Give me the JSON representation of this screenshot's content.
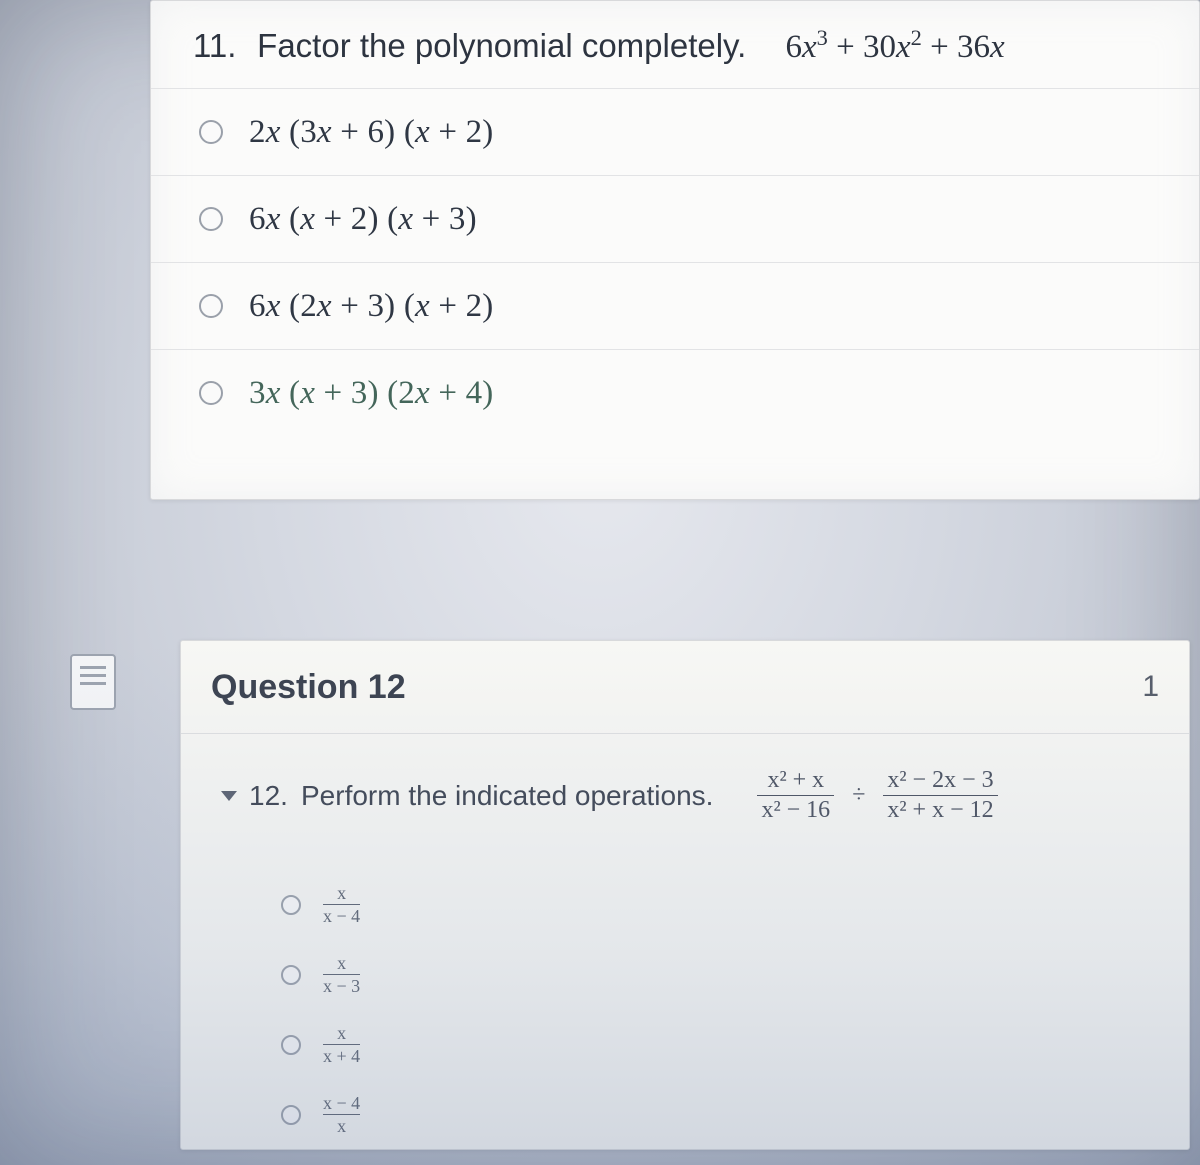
{
  "q11": {
    "number": "11.",
    "prompt": "Factor the polynomial completely.",
    "expression_html": "6<i>x</i><sup>3</sup> + 30<i>x</i><sup>2</sup> + 36<i>x</i>",
    "options": [
      "2<i>x</i> (3<i>x</i> + 6) (<i>x</i> + 2)",
      "6<i>x</i> (<i>x</i> + 2) (<i>x</i> + 3)",
      "6<i>x</i> (2<i>x</i> + 3) (<i>x</i> + 2)",
      "3<i>x</i> (<i>x</i> + 3) (2<i>x</i> + 4)"
    ],
    "option_colors": [
      "#2f3744",
      "#2f3744",
      "#2f3744",
      "#44665a"
    ]
  },
  "q12": {
    "title": "Question 12",
    "points": "1",
    "number": "12.",
    "prompt": "Perform the indicated operations.",
    "frac1_top": "x² + x",
    "frac1_bot": "x² − 16",
    "div": "÷",
    "frac2_top": "x² − 2x − 3",
    "frac2_bot": "x² + x − 12",
    "options": [
      {
        "top": "x",
        "bot": "x − 4"
      },
      {
        "top": "x",
        "bot": "x − 3"
      },
      {
        "top": "x",
        "bot": "x + 4"
      },
      {
        "top": "x − 4",
        "bot": "x"
      }
    ]
  }
}
